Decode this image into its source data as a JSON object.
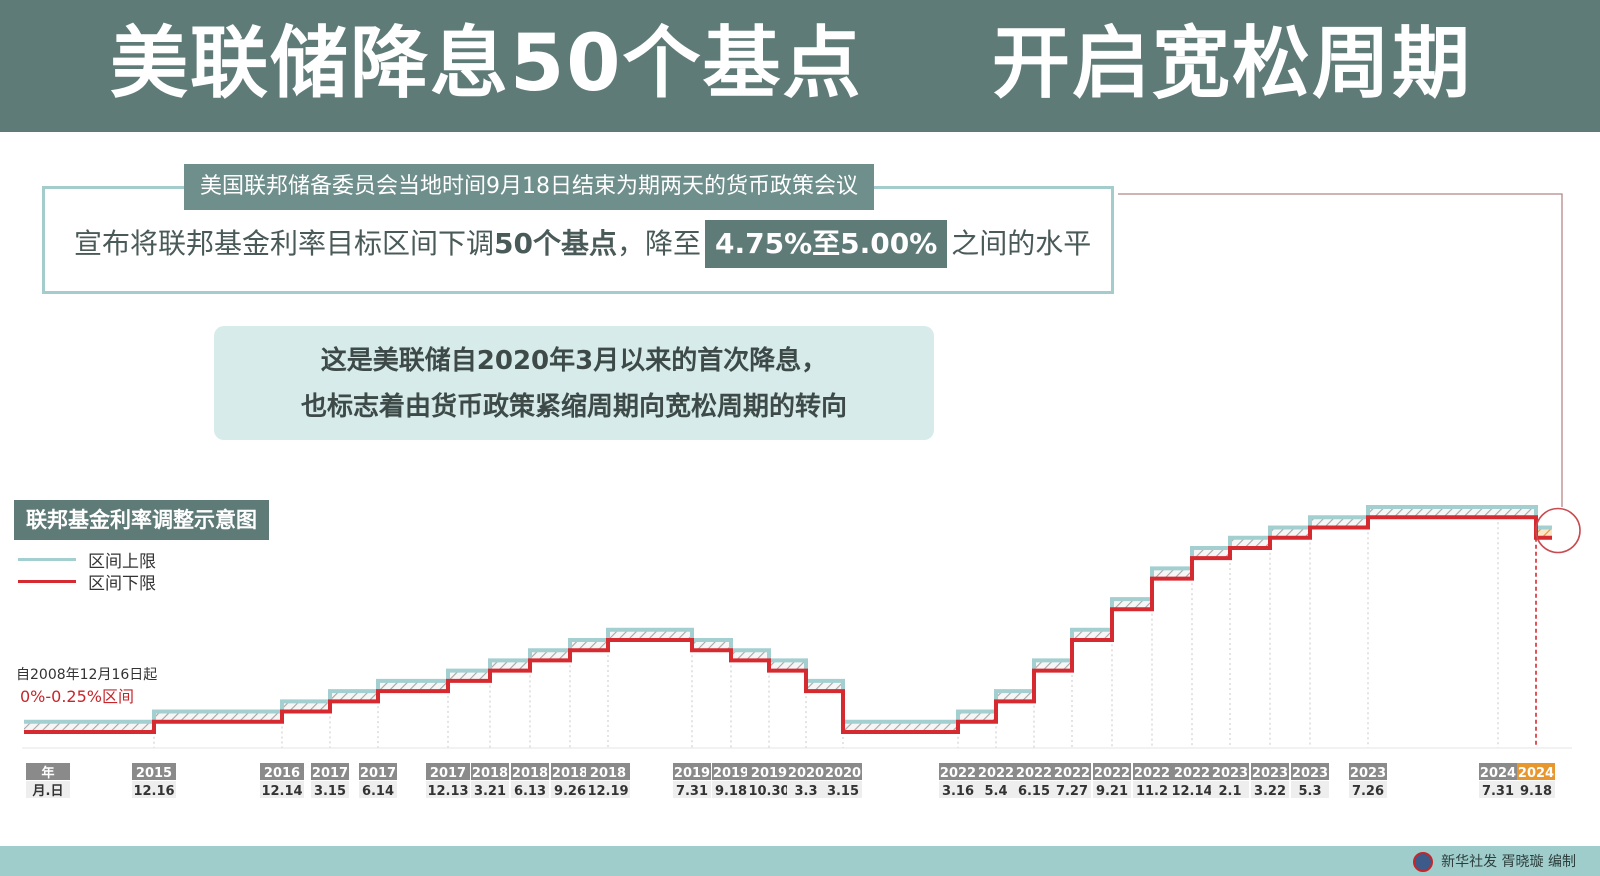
{
  "header": {
    "title_part1": "美联储降息50个基点",
    "title_part2": "开启宽松周期"
  },
  "announcement": {
    "subtitle": "美国联邦储备委员会当地时间9月18日结束为期两天的货币政策会议",
    "prefix": "宣布将联邦基金利率目标区间下调",
    "bold": "50个基点",
    "middle": "，降至",
    "highlight": "4.75%至5.00%",
    "suffix": "之间的水平"
  },
  "callout": {
    "line1": "这是美联储自2020年3月以来的首次降息，",
    "line2": "也标志着由货币政策紧缩周期向宽松周期的转向"
  },
  "legend": {
    "upper": "区间上限",
    "lower": "区间下限"
  },
  "notes": {
    "start": "自2008年12月16日起",
    "range": "0%-0.25%区间"
  },
  "footer": {
    "credit": "新华社发 胥晓璇 编制"
  },
  "colors": {
    "upper": "#a3cfd0",
    "lower": "#d52a30",
    "highlight": "#e8962e",
    "header": "#5f7b78"
  },
  "chart_data": {
    "type": "line",
    "title": "联邦基金利率调整示意图",
    "axis_labels": {
      "year": "年",
      "date": "月.日"
    },
    "initial": {
      "lower": 0,
      "upper": 0.25
    },
    "changes": [
      {
        "year": "2015",
        "date": "12.16",
        "lower": 0.25,
        "upper": 0.5
      },
      {
        "year": "2016",
        "date": "12.14",
        "lower": 0.5,
        "upper": 0.75
      },
      {
        "year": "2017",
        "date": "3.15",
        "lower": 0.75,
        "upper": 1.0
      },
      {
        "year": "2017",
        "date": "6.14",
        "lower": 1.0,
        "upper": 1.25
      },
      {
        "year": "2017",
        "date": "12.13",
        "lower": 1.25,
        "upper": 1.5
      },
      {
        "year": "2018",
        "date": "3.21",
        "lower": 1.5,
        "upper": 1.75
      },
      {
        "year": "2018",
        "date": "6.13",
        "lower": 1.75,
        "upper": 2.0
      },
      {
        "year": "2018",
        "date": "9.26",
        "lower": 2.0,
        "upper": 2.25
      },
      {
        "year": "2018",
        "date": "12.19",
        "lower": 2.25,
        "upper": 2.5
      },
      {
        "year": "2019",
        "date": "7.31",
        "lower": 2.0,
        "upper": 2.25
      },
      {
        "year": "2019",
        "date": "9.18",
        "lower": 1.75,
        "upper": 2.0
      },
      {
        "year": "2019",
        "date": "10.30",
        "lower": 1.5,
        "upper": 1.75
      },
      {
        "year": "2020",
        "date": "3.3",
        "lower": 1.0,
        "upper": 1.25
      },
      {
        "year": "2020",
        "date": "3.15",
        "lower": 0,
        "upper": 0.25
      },
      {
        "year": "2022",
        "date": "3.16",
        "lower": 0.25,
        "upper": 0.5
      },
      {
        "year": "2022",
        "date": "5.4",
        "lower": 0.75,
        "upper": 1.0
      },
      {
        "year": "2022",
        "date": "6.15",
        "lower": 1.5,
        "upper": 1.75
      },
      {
        "year": "2022",
        "date": "7.27",
        "lower": 2.25,
        "upper": 2.5
      },
      {
        "year": "2022",
        "date": "9.21",
        "lower": 3.0,
        "upper": 3.25
      },
      {
        "year": "2022",
        "date": "11.2",
        "lower": 3.75,
        "upper": 4.0
      },
      {
        "year": "2022",
        "date": "12.14",
        "lower": 4.25,
        "upper": 4.5
      },
      {
        "year": "2023",
        "date": "2.1",
        "lower": 4.5,
        "upper": 4.75
      },
      {
        "year": "2023",
        "date": "3.22",
        "lower": 4.75,
        "upper": 5.0
      },
      {
        "year": "2023",
        "date": "5.3",
        "lower": 5.0,
        "upper": 5.25
      },
      {
        "year": "2023",
        "date": "7.26",
        "lower": 5.25,
        "upper": 5.5
      },
      {
        "year": "2024",
        "date": "7.31",
        "lower": 5.25,
        "upper": 5.5
      },
      {
        "year": "2024",
        "date": "9.18",
        "lower": 4.75,
        "upper": 5.0
      }
    ]
  }
}
